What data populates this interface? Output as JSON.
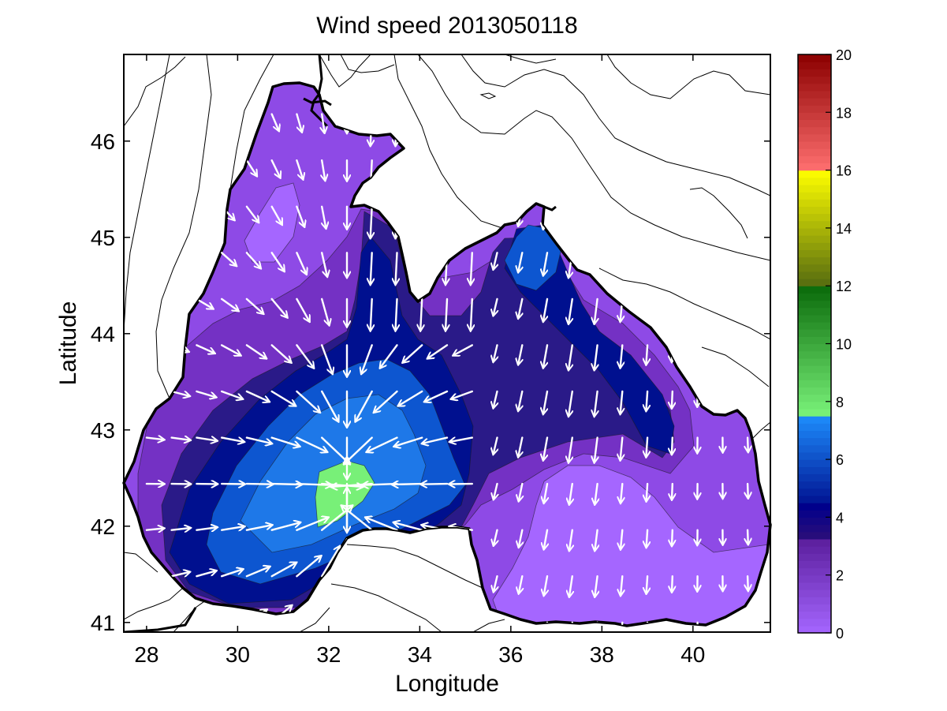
{
  "chart_data": {
    "type": "heatmap",
    "title": "Wind speed 2013050118",
    "xlabel": "Longitude",
    "ylabel": "Latitude",
    "xlim": [
      27.5,
      41.7
    ],
    "ylim": [
      40.9,
      46.9
    ],
    "x_ticks": [
      28,
      30,
      32,
      34,
      36,
      38,
      40
    ],
    "y_ticks": [
      41,
      42,
      43,
      44,
      45,
      46
    ],
    "x_tick_labels": [
      "28",
      "30",
      "32",
      "34",
      "36",
      "38",
      "40"
    ],
    "y_tick_labels": [
      "41",
      "42",
      "43",
      "44",
      "45",
      "46"
    ],
    "colorbar": {
      "range": [
        0,
        20
      ],
      "ticks": [
        0,
        2,
        4,
        6,
        8,
        10,
        12,
        14,
        16,
        18,
        20
      ],
      "tick_labels": [
        "0",
        "2",
        "4",
        "6",
        "8",
        "10",
        "12",
        "14",
        "16",
        "18",
        "20"
      ],
      "bands": [
        {
          "from": 0,
          "to": 3.2,
          "colors": [
            "#a566ff",
            "#5c1f9e"
          ]
        },
        {
          "from": 3.2,
          "to": 4.4,
          "colors": [
            "#2e0f78",
            "#00008b"
          ]
        },
        {
          "from": 4.4,
          "to": 7.6,
          "colors": [
            "#00108f",
            "#1e90ff"
          ]
        },
        {
          "from": 7.6,
          "to": 12,
          "colors": [
            "#78f078",
            "#0a6a0a"
          ]
        },
        {
          "from": 12,
          "to": 16,
          "colors": [
            "#556b0f",
            "#ffff00"
          ]
        },
        {
          "from": 16,
          "to": 20,
          "colors": [
            "#ff6f6f",
            "#8b0000"
          ]
        }
      ]
    },
    "contour_fill_levels": [
      {
        "level": 1.0,
        "color": "#a566ff",
        "center": [
          38.6,
          41.8
        ]
      },
      {
        "level": 1.5,
        "color": "#8e4ae6"
      },
      {
        "level": 2.5,
        "color": "#7431c4"
      },
      {
        "level": 3.5,
        "color": "#2a1a88"
      },
      {
        "level": 4.2,
        "color": "#00108f"
      },
      {
        "level": 5.5,
        "color": "#0d56d0"
      },
      {
        "level": 6.5,
        "color": "#1e78e8"
      },
      {
        "level": 8.0,
        "color": "#78f078",
        "center": [
          32.4,
          42.4
        ]
      }
    ],
    "colors": {
      "land_contour": "#000000",
      "arrow": "#ffffff",
      "coastline": "#000000"
    }
  }
}
